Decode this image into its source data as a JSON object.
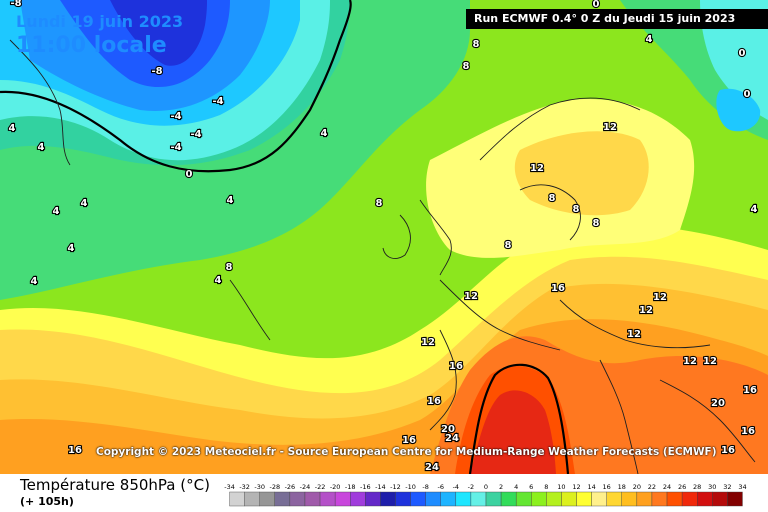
{
  "header": {
    "date": "Lundi 19 juin 2023",
    "time": "11:00 locale",
    "run": "Run ECMWF 0.4° 0 Z du Jeudi 15 juin 2023"
  },
  "copyright": "Copyright © 2023 Meteociel.fr - Source European Centre for Medium-Range Weather Forecasts (ECMWF)",
  "legend": {
    "title": "Température 850hPa (°C)",
    "subtitle": "(+ 105h)",
    "ticks": [
      "-34",
      "-32",
      "-30",
      "-28",
      "-26",
      "-24",
      "-22",
      "-20",
      "-18",
      "-16",
      "-14",
      "-12",
      "-10",
      "-8",
      "-6",
      "-4",
      "-2",
      "0",
      "2",
      "4",
      "6",
      "8",
      "10",
      "12",
      "14",
      "16",
      "18",
      "20",
      "22",
      "24",
      "26",
      "28",
      "30",
      "32",
      "34"
    ],
    "colors": [
      "#d2d2d2",
      "#b4b4b4",
      "#969696",
      "#786e96",
      "#8c64a0",
      "#a05aaa",
      "#b450c8",
      "#c846dc",
      "#a03cdc",
      "#6428c8",
      "#1e1eaa",
      "#1e32dc",
      "#1e5aff",
      "#1e8cff",
      "#1eb4ff",
      "#1ee6ff",
      "#64f0e6",
      "#3cd2a0",
      "#32dc5a",
      "#64e632",
      "#8cf01e",
      "#b4f01e",
      "#dcf01e",
      "#ffff32",
      "#fff08c",
      "#ffd732",
      "#ffbe1e",
      "#ffa01e",
      "#ff781e",
      "#ff5000",
      "#f0280a",
      "#d20f0f",
      "#b40a0a",
      "#820000"
    ]
  },
  "map_labels": [
    {
      "text": "-8"
    },
    {
      "text": "-8"
    },
    {
      "text": "-4"
    },
    {
      "text": "-4"
    },
    {
      "text": "-4"
    },
    {
      "text": "-4"
    },
    {
      "text": "0"
    },
    {
      "text": "0"
    },
    {
      "text": "0"
    },
    {
      "text": "0"
    },
    {
      "text": "4"
    },
    {
      "text": "4"
    },
    {
      "text": "4"
    },
    {
      "text": "4"
    },
    {
      "text": "4"
    },
    {
      "text": "4"
    },
    {
      "text": "4"
    },
    {
      "text": "4"
    },
    {
      "text": "4"
    },
    {
      "text": "4"
    },
    {
      "text": "4"
    },
    {
      "text": "8"
    },
    {
      "text": "8"
    },
    {
      "text": "8"
    },
    {
      "text": "8"
    },
    {
      "text": "8"
    },
    {
      "text": "8"
    },
    {
      "text": "8"
    },
    {
      "text": "8"
    },
    {
      "text": "12"
    },
    {
      "text": "12"
    },
    {
      "text": "12"
    },
    {
      "text": "12"
    },
    {
      "text": "12"
    },
    {
      "text": "12"
    },
    {
      "text": "12"
    },
    {
      "text": "12"
    },
    {
      "text": "12"
    },
    {
      "text": "16"
    },
    {
      "text": "16"
    },
    {
      "text": "16"
    },
    {
      "text": "16"
    },
    {
      "text": "16"
    },
    {
      "text": "16"
    },
    {
      "text": "16"
    },
    {
      "text": "16"
    },
    {
      "text": "20"
    },
    {
      "text": "20"
    },
    {
      "text": "24"
    },
    {
      "text": "24"
    }
  ]
}
